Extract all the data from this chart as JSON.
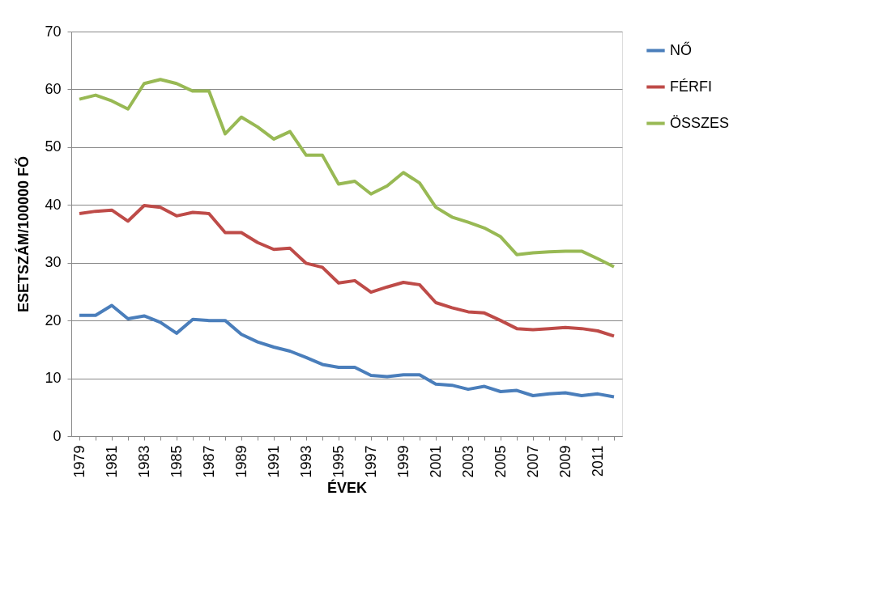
{
  "chart_data": {
    "type": "line",
    "xlabel": "ÉVEK",
    "ylabel": "ESETSZÁM/100000 FŐ",
    "categories": [
      "1979",
      null,
      "1981",
      null,
      "1983",
      null,
      "1985",
      null,
      "1987",
      null,
      "1989",
      null,
      "1991",
      null,
      "1993",
      null,
      "1995",
      null,
      "1997",
      null,
      "1999",
      null,
      "2001",
      null,
      "2003",
      null,
      "2005",
      null,
      "2007",
      null,
      "2009",
      null,
      "2011",
      null
    ],
    "series": [
      {
        "name": "NŐ",
        "color": "#4a7ebb",
        "values": [
          20.9,
          20.9,
          22.6,
          20.3,
          20.8,
          19.7,
          17.8,
          20.2,
          20.0,
          20.0,
          17.6,
          16.3,
          15.4,
          14.7,
          13.6,
          12.4,
          11.9,
          11.9,
          10.5,
          10.3,
          10.6,
          10.6,
          9.0,
          8.8,
          8.1,
          8.6,
          7.7,
          7.9,
          7.0,
          7.3,
          7.5,
          7.0,
          7.3,
          6.8
        ]
      },
      {
        "name": "FÉRFI",
        "color": "#be4b48",
        "values": [
          38.5,
          38.9,
          39.1,
          37.2,
          39.9,
          39.6,
          38.1,
          38.7,
          38.5,
          35.2,
          35.2,
          33.5,
          32.3,
          32.5,
          29.9,
          29.2,
          26.5,
          26.9,
          24.9,
          25.8,
          26.6,
          26.2,
          23.1,
          22.2,
          21.5,
          21.3,
          20.0,
          18.6,
          18.4,
          18.6,
          18.8,
          18.6,
          18.2,
          17.3
        ]
      },
      {
        "name": "ÖSSZES",
        "color": "#98b954",
        "values": [
          58.3,
          59.0,
          58.0,
          56.6,
          61.0,
          61.7,
          61.0,
          59.7,
          59.7,
          52.3,
          55.2,
          53.5,
          51.4,
          52.7,
          48.6,
          48.6,
          43.6,
          44.1,
          41.9,
          43.3,
          45.6,
          43.8,
          39.6,
          37.9,
          37.0,
          36.0,
          34.5,
          31.4,
          31.7,
          31.9,
          32.0,
          32.0,
          30.7,
          29.3
        ]
      }
    ],
    "ylim": [
      0,
      70
    ],
    "yticks": [
      0,
      10,
      20,
      30,
      40,
      50,
      60,
      70
    ],
    "grid": "y",
    "legend": "right",
    "marker": "none",
    "line_style": "solid"
  }
}
